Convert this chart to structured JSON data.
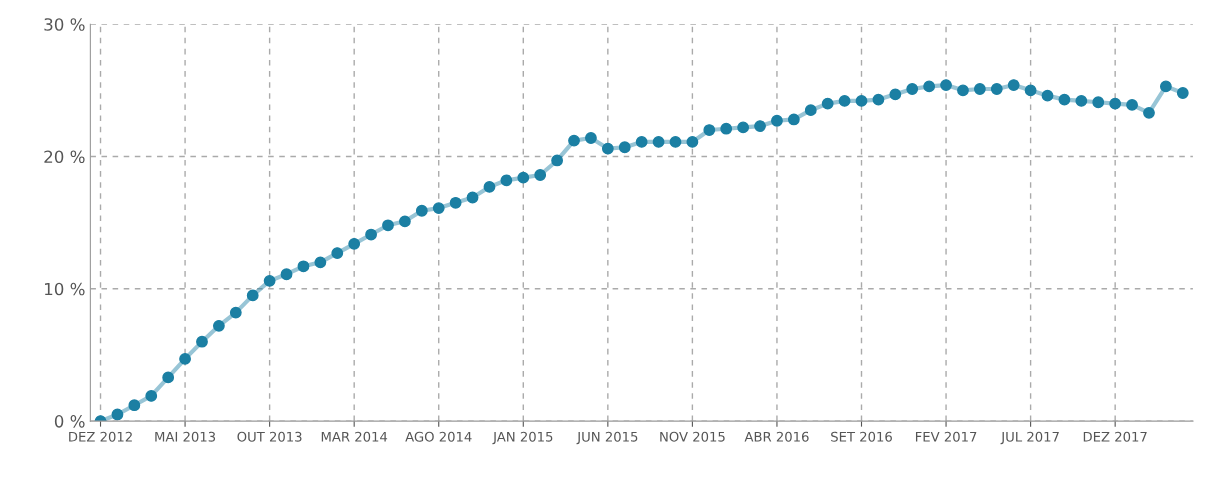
{
  "chart_data": {
    "type": "line",
    "categories": [
      "DEZ 2012",
      null,
      null,
      null,
      null,
      "MAI 2013",
      null,
      null,
      null,
      null,
      "OUT 2013",
      null,
      null,
      null,
      null,
      "MAR 2014",
      null,
      null,
      null,
      null,
      "AGO 2014",
      null,
      null,
      null,
      null,
      "JAN 2015",
      null,
      null,
      null,
      null,
      "JUN 2015",
      null,
      null,
      null,
      null,
      "NOV 2015",
      null,
      null,
      null,
      null,
      "ABR 2016",
      null,
      null,
      null,
      null,
      "SET 2016",
      null,
      null,
      null,
      null,
      "FEV 2017",
      null,
      null,
      null,
      null,
      "JUL 2017",
      null,
      null,
      null,
      null,
      "DEZ 2017",
      null,
      null,
      null,
      null
    ],
    "series": [
      {
        "color": "#1b7fa3",
        "values": [
          0,
          0.5,
          1.2,
          1.9,
          3.3,
          4.7,
          6.0,
          7.2,
          8.2,
          9.5,
          10.6,
          11.1,
          11.7,
          12.0,
          12.7,
          13.4,
          14.1,
          14.8,
          15.1,
          15.9,
          16.1,
          16.5,
          16.9,
          17.7,
          18.2,
          18.4,
          18.6,
          19.7,
          21.2,
          21.4,
          20.6,
          20.7,
          21.1,
          21.1,
          21.1,
          21.1,
          22.0,
          22.1,
          22.2,
          22.3,
          22.7,
          22.8,
          23.5,
          24.0,
          24.2,
          24.2,
          24.3,
          24.7,
          25.1,
          25.3,
          25.4,
          25.0,
          25.1,
          25.1,
          25.4,
          25.0,
          24.6,
          24.3,
          24.2,
          24.1,
          24.0,
          23.9,
          23.3,
          25.3,
          24.8
        ]
      }
    ],
    "ylim": [
      0,
      30
    ],
    "yticks": [
      {
        "value": 0,
        "label": "0 %"
      },
      {
        "value": 10,
        "label": "10 %"
      },
      {
        "value": 20,
        "label": "20 %"
      },
      {
        "value": 30,
        "label": "30 %"
      }
    ],
    "grid": true,
    "marker": "circle",
    "line_style": "solid",
    "legend": false
  }
}
